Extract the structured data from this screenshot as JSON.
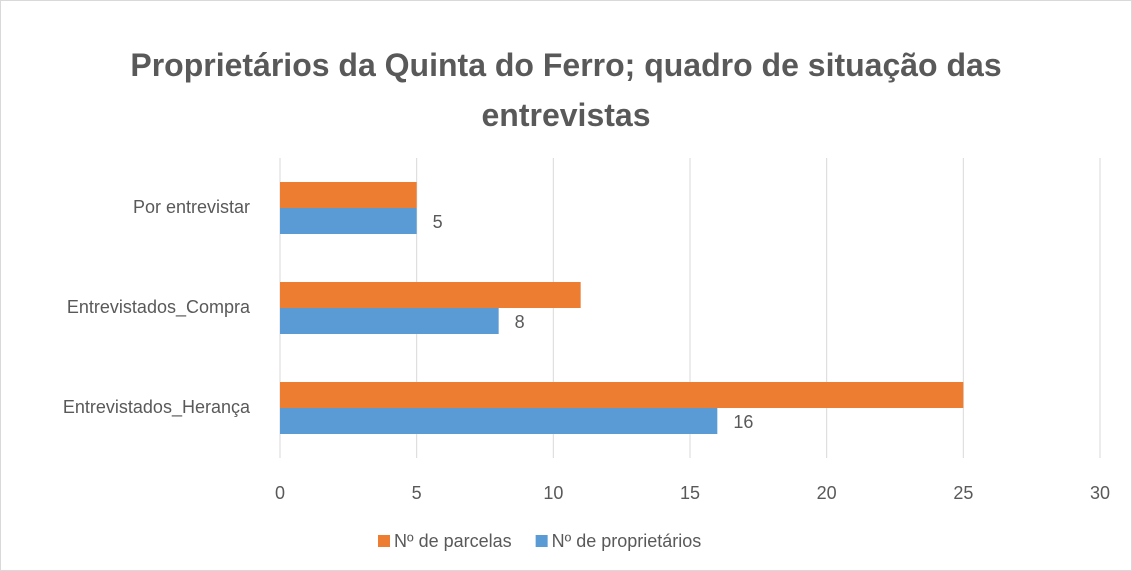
{
  "chart_data": {
    "type": "hbar",
    "title": "Proprietários da Quinta do Ferro; quadro de situação das entrevistas",
    "categories": [
      "Por entrevistar",
      "Entrevistados_Compra",
      "Entrevistados_Herança"
    ],
    "series": [
      {
        "name": "Nº de parcelas",
        "color": "#ed7d31",
        "values": [
          5,
          11,
          25
        ],
        "data_labels": false
      },
      {
        "name": "Nº de proprietários",
        "color": "#5b9bd5",
        "values": [
          5,
          8,
          16
        ],
        "data_labels": true
      }
    ],
    "xlim": [
      0,
      30
    ],
    "xticks": [
      0,
      5,
      10,
      15,
      20,
      25,
      30
    ],
    "grid": true,
    "legend": "bottom"
  }
}
